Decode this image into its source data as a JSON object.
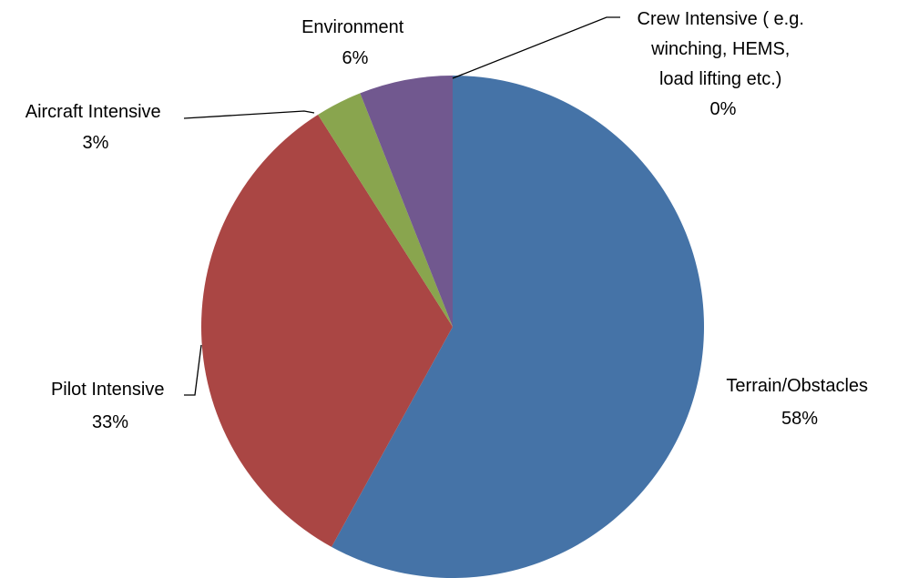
{
  "chart_data": {
    "type": "pie",
    "title": "",
    "start_angle_deg": 0,
    "direction": "clockwise",
    "slices": [
      {
        "label": "Terrain/Obstacles",
        "value": 58,
        "percent_label": "58%",
        "color": "#4573A7"
      },
      {
        "label": "Pilot Intensive",
        "value": 33,
        "percent_label": "33%",
        "color": "#AA4644"
      },
      {
        "label": "Aircraft Intensive",
        "value": 3,
        "percent_label": "3%",
        "color": "#89A54E"
      },
      {
        "label": "Environment",
        "value": 6,
        "percent_label": "6%",
        "color": "#71588F"
      },
      {
        "label": "Crew Intensive ( e.g. winching, HEMS, load lifting etc.)",
        "value": 0,
        "percent_label": "0%",
        "color": "#4198AF"
      }
    ],
    "data_labels": [
      {
        "lines": [
          "Terrain/Obstacles",
          "58%"
        ]
      },
      {
        "lines": [
          "Pilot Intensive",
          "33%"
        ]
      },
      {
        "lines": [
          "Aircraft Intensive",
          "3%"
        ]
      },
      {
        "lines": [
          "Environment",
          "6%"
        ]
      },
      {
        "lines": [
          "Crew Intensive ( e.g.",
          "winching, HEMS,",
          "load lifting etc.)",
          "0%"
        ]
      }
    ],
    "legend": "none"
  }
}
